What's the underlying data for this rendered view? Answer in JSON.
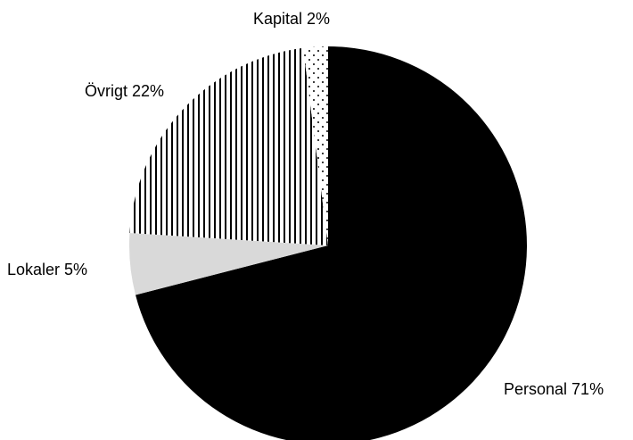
{
  "chart_data": {
    "type": "pie",
    "categories": [
      "Personal",
      "Lokaler",
      "Övrigt",
      "Kapital"
    ],
    "values": [
      71,
      5,
      22,
      2
    ],
    "value_labels": [
      "71%",
      "5%",
      "22%",
      "2%"
    ],
    "colors": [
      "#000000",
      "#d9d9d9",
      "#000000",
      "#000000"
    ],
    "patterns": [
      "solid",
      "solid",
      "vertical-lines",
      "dots"
    ]
  }
}
